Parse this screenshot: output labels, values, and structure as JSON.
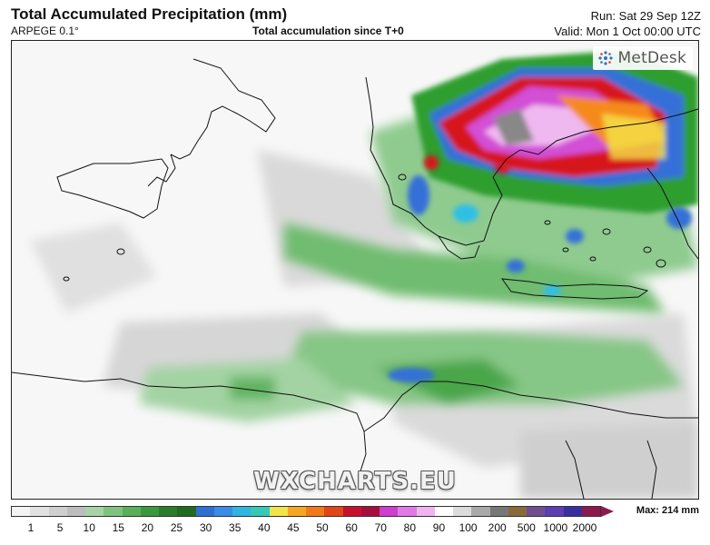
{
  "header": {
    "title": "Total Accumulated Precipitation (mm)",
    "model": "ARPEGE 0.1°",
    "subtitle": "Total accumulation since T+0",
    "run": "Run: Sat 29 Sep 12Z",
    "valid": "Valid: Mon 1 Oct 00:00 UTC"
  },
  "branding": {
    "logo_text": "MetDesk",
    "watermark": "WXCHARTS.EU"
  },
  "legend": {
    "max_label": "Max: 214 mm",
    "ticks": [
      "1",
      "5",
      "10",
      "15",
      "20",
      "25",
      "30",
      "35",
      "40",
      "45",
      "50",
      "60",
      "70",
      "80",
      "90",
      "100",
      "200",
      "500",
      "1000",
      "2000"
    ],
    "colors": [
      "#f4f4f4",
      "#e2e2e2",
      "#cfcfcf",
      "#bdbdbd",
      "#a6d4a6",
      "#7fc37f",
      "#5aaf5a",
      "#3a9a3a",
      "#2b7d2b",
      "#1f6b1f",
      "#2f6fd1",
      "#3b8be8",
      "#2fb5e0",
      "#35c9b6",
      "#f2e34a",
      "#f5a623",
      "#f07a1a",
      "#e04616",
      "#c8102e",
      "#a50f3c",
      "#cc3fcf",
      "#e07ae8",
      "#f0b4f0",
      "#ffffff",
      "#dcdcdc",
      "#a9a9a9",
      "#777777",
      "#8a6a3a",
      "#6f4f8f",
      "#5a3fb0",
      "#3a2fa0",
      "#8b1a4f"
    ]
  },
  "colors": {
    "land": "#ffffff",
    "sea_light": "#e6e6e6",
    "green_light": "#9cd19c",
    "green": "#4aa64a",
    "green_dark": "#237a23",
    "blue": "#3470d8",
    "cyan": "#2fbfe6",
    "red": "#d7191c",
    "orange": "#f58a1a",
    "yellow": "#f4e34a",
    "magenta": "#d24fd6",
    "pink": "#f0b8f0",
    "coast": "#111111"
  }
}
